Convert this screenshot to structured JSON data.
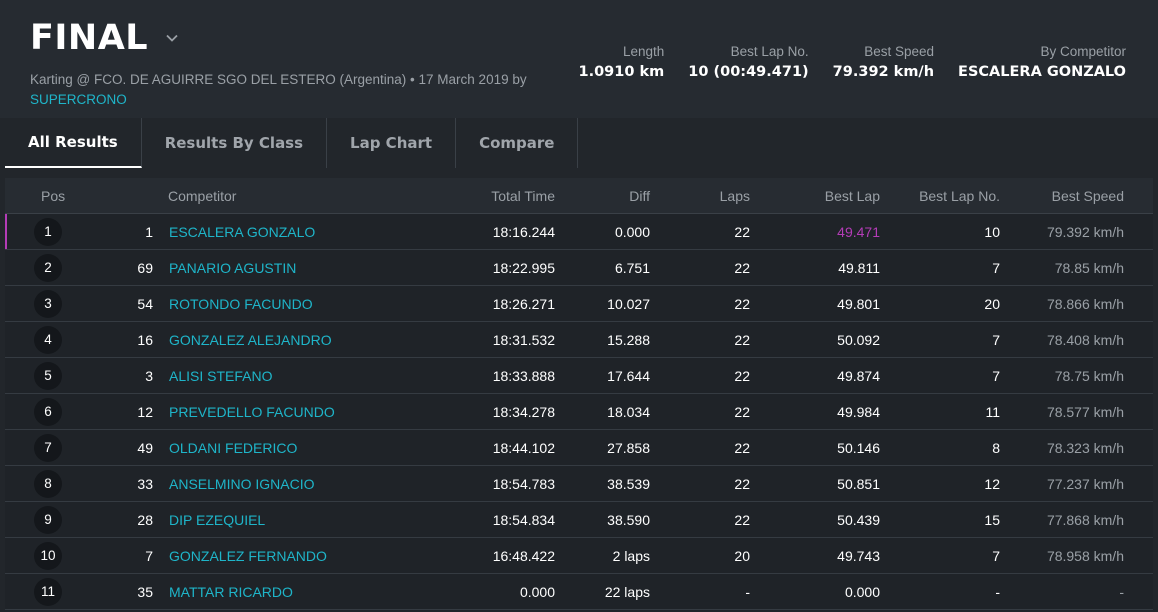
{
  "header": {
    "title": "FINAL",
    "subtitle": "Karting @ FCO. DE AGUIRRE SGO DEL ESTERO (Argentina) • 17 March 2019 by",
    "organizer": "SUPERCRONO",
    "stats": [
      {
        "label": "Length",
        "value": "1.0910 km"
      },
      {
        "label": "Best Lap No.",
        "value": "10 (00:49.471)"
      },
      {
        "label": "Best Speed",
        "value": "79.392 km/h"
      },
      {
        "label": "By Competitor",
        "value": "ESCALERA GONZALO"
      }
    ]
  },
  "tabs": [
    {
      "label": "All Results",
      "active": true
    },
    {
      "label": "Results By Class",
      "active": false
    },
    {
      "label": "Lap Chart",
      "active": false
    },
    {
      "label": "Compare",
      "active": false
    }
  ],
  "columns": [
    "Pos",
    "Competitor",
    "Total Time",
    "Diff",
    "Laps",
    "Best Lap",
    "Best Lap No.",
    "Best Speed"
  ],
  "rows": [
    {
      "pos": "1",
      "num": "1",
      "name": "ESCALERA GONZALO",
      "time": "18:16.244",
      "diff": "0.000",
      "laps": "22",
      "best": "49.471",
      "blno": "10",
      "speed": "79.392 km/h"
    },
    {
      "pos": "2",
      "num": "69",
      "name": "PANARIO AGUSTIN",
      "time": "18:22.995",
      "diff": "6.751",
      "laps": "22",
      "best": "49.811",
      "blno": "7",
      "speed": "78.85 km/h"
    },
    {
      "pos": "3",
      "num": "54",
      "name": "ROTONDO FACUNDO",
      "time": "18:26.271",
      "diff": "10.027",
      "laps": "22",
      "best": "49.801",
      "blno": "20",
      "speed": "78.866 km/h"
    },
    {
      "pos": "4",
      "num": "16",
      "name": "GONZALEZ ALEJANDRO",
      "time": "18:31.532",
      "diff": "15.288",
      "laps": "22",
      "best": "50.092",
      "blno": "7",
      "speed": "78.408 km/h"
    },
    {
      "pos": "5",
      "num": "3",
      "name": "ALISI STEFANO",
      "time": "18:33.888",
      "diff": "17.644",
      "laps": "22",
      "best": "49.874",
      "blno": "7",
      "speed": "78.75 km/h"
    },
    {
      "pos": "6",
      "num": "12",
      "name": "PREVEDELLO FACUNDO",
      "time": "18:34.278",
      "diff": "18.034",
      "laps": "22",
      "best": "49.984",
      "blno": "11",
      "speed": "78.577 km/h"
    },
    {
      "pos": "7",
      "num": "49",
      "name": "OLDANI FEDERICO",
      "time": "18:44.102",
      "diff": "27.858",
      "laps": "22",
      "best": "50.146",
      "blno": "8",
      "speed": "78.323 km/h"
    },
    {
      "pos": "8",
      "num": "33",
      "name": "ANSELMINO IGNACIO",
      "time": "18:54.783",
      "diff": "38.539",
      "laps": "22",
      "best": "50.851",
      "blno": "12",
      "speed": "77.237 km/h"
    },
    {
      "pos": "9",
      "num": "28",
      "name": "DIP EZEQUIEL",
      "time": "18:54.834",
      "diff": "38.590",
      "laps": "22",
      "best": "50.439",
      "blno": "15",
      "speed": "77.868 km/h"
    },
    {
      "pos": "10",
      "num": "7",
      "name": "GONZALEZ FERNANDO",
      "time": "16:48.422",
      "diff": "2 laps",
      "laps": "20",
      "best": "49.743",
      "blno": "7",
      "speed": "78.958 km/h"
    },
    {
      "pos": "11",
      "num": "35",
      "name": "MATTAR RICARDO",
      "time": "0.000",
      "diff": "22 laps",
      "laps": "-",
      "best": "0.000",
      "blno": "-",
      "speed": "-"
    }
  ],
  "colors": {
    "accent": "#1fb5c9",
    "fastest": "#b43cb7",
    "background": "#22262b"
  },
  "icons": {
    "title_dropdown": "chevron-down-icon"
  }
}
